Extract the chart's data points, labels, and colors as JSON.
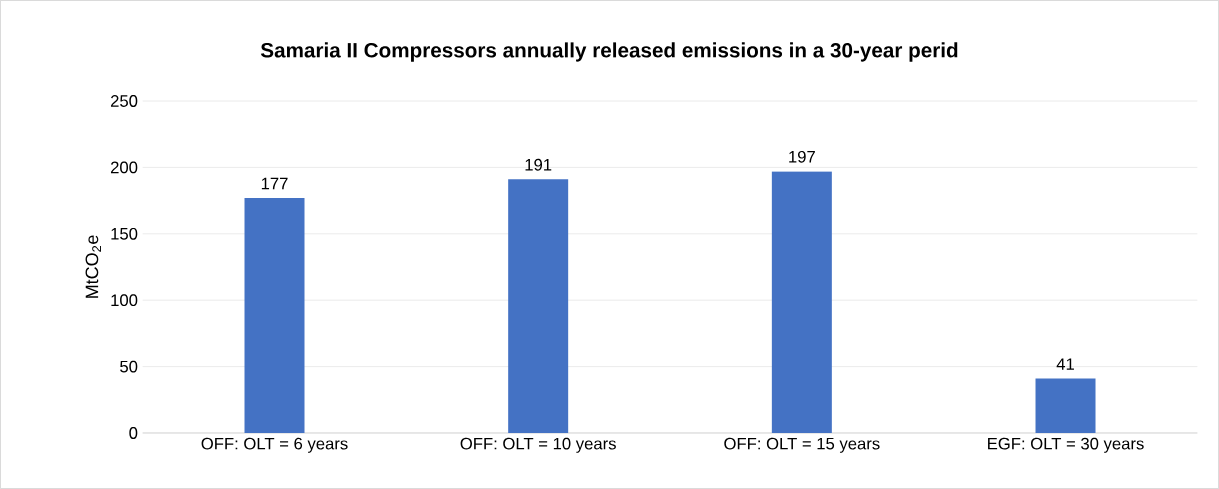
{
  "chart_data": {
    "type": "bar",
    "title": "Samaria II Compressors annually released emissions in a 30-year perid",
    "ylabel": "MtCO$_{2}$e",
    "categories": [
      "OFF: OLT = 6 years",
      "OFF: OLT = 10 years",
      "OFF: OLT = 15 years",
      "EGF: OLT = 30 years"
    ],
    "values": [
      177,
      191,
      197,
      41
    ],
    "color": "#4472c4",
    "ylim": [
      0,
      250
    ],
    "yticks": [
      0,
      50,
      100,
      150,
      200,
      250
    ],
    "grid": "y",
    "data_labels": true
  }
}
